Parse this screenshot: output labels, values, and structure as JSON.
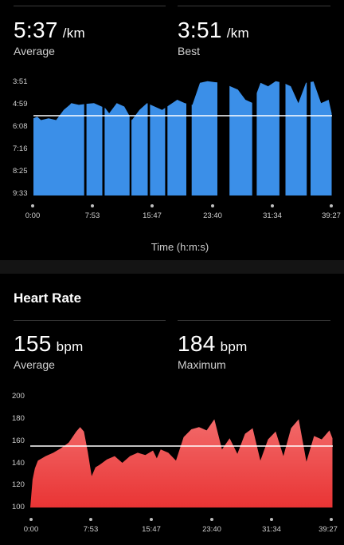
{
  "pace": {
    "average": {
      "value": "5:37",
      "unit": "/km",
      "label": "Average"
    },
    "best": {
      "value": "3:51",
      "unit": "/km",
      "label": "Best"
    },
    "y_ticks": [
      "3:51",
      "4:59",
      "6:08",
      "7:16",
      "8:25",
      "9:33"
    ],
    "x_ticks": [
      "0:00",
      "7:53",
      "15:47",
      "23:40",
      "31:34",
      "39:27"
    ],
    "x_label": "Time (h:m:s)",
    "color": "#3b8fe8"
  },
  "heart_rate": {
    "title": "Heart Rate",
    "average": {
      "value": "155",
      "unit": "bpm",
      "label": "Average"
    },
    "maximum": {
      "value": "184",
      "unit": "bpm",
      "label": "Maximum"
    },
    "y_ticks": [
      "200",
      "180",
      "160",
      "140",
      "120",
      "100"
    ],
    "x_ticks": [
      "0:00",
      "7:53",
      "15:47",
      "23:40",
      "31:34",
      "39:27"
    ],
    "color": "#e93434"
  },
  "chart_data": [
    {
      "type": "area",
      "ylabel": "",
      "xlabel": "Time (h:m:s)",
      "y_reversed": true,
      "ylim_seconds_per_km": [
        231,
        573
      ],
      "average_line_seconds_per_km": 337,
      "x_minutes": [
        0,
        0.5,
        1,
        2,
        3,
        4,
        4.8,
        5,
        6,
        7,
        8,
        9,
        9.5,
        10,
        11,
        12,
        13,
        14,
        15,
        16,
        17,
        18,
        19,
        20,
        21,
        22,
        23,
        24,
        25,
        26,
        27,
        28,
        29,
        30,
        31,
        32,
        33,
        34,
        35,
        36,
        37,
        38,
        39,
        39.4
      ],
      "y_seconds_per_km": [
        345,
        340,
        350,
        345,
        350,
        320,
        305,
        300,
        305,
        302,
        300,
        310,
        315,
        330,
        300,
        310,
        350,
        320,
        300,
        310,
        320,
        305,
        290,
        300,
        305,
        240,
        235,
        238,
        240,
        250,
        260,
        290,
        300,
        240,
        250,
        235,
        240,
        250,
        300,
        240,
        236,
        300,
        290,
        330
      ],
      "gaps_minutes": [
        [
          6.7,
          7.0
        ],
        [
          9.1,
          9.4
        ],
        [
          12.7,
          12.95
        ],
        [
          15.1,
          15.4
        ],
        [
          17.4,
          17.7
        ],
        [
          20.2,
          20.9
        ],
        [
          24.3,
          25.9
        ],
        [
          28.9,
          29.5
        ],
        [
          32.5,
          33.3
        ],
        [
          36.1,
          36.6
        ],
        [
          39.6,
          39.9
        ]
      ]
    },
    {
      "type": "area",
      "ylabel": "",
      "xlabel": "",
      "ylim_bpm": [
        100,
        200
      ],
      "average_line_bpm": 155,
      "x_minutes": [
        0,
        0.3,
        0.6,
        1,
        2,
        3,
        4,
        5,
        6,
        6.5,
        7,
        7.5,
        8,
        8.5,
        9,
        10,
        11,
        12,
        13,
        14,
        15,
        16,
        16.5,
        17,
        18,
        19,
        20,
        21,
        22,
        23,
        24,
        25,
        26,
        27,
        28,
        29,
        30,
        31,
        32,
        33,
        34,
        35,
        36,
        37,
        38,
        39,
        39.4
      ],
      "y_bpm": [
        100,
        125,
        135,
        142,
        146,
        149,
        153,
        158,
        168,
        172,
        168,
        150,
        128,
        136,
        138,
        143,
        146,
        140,
        146,
        149,
        147,
        151,
        144,
        152,
        149,
        142,
        163,
        170,
        172,
        169,
        179,
        152,
        162,
        148,
        166,
        171,
        142,
        161,
        168,
        146,
        171,
        179,
        141,
        164,
        161,
        169,
        162
      ]
    }
  ]
}
